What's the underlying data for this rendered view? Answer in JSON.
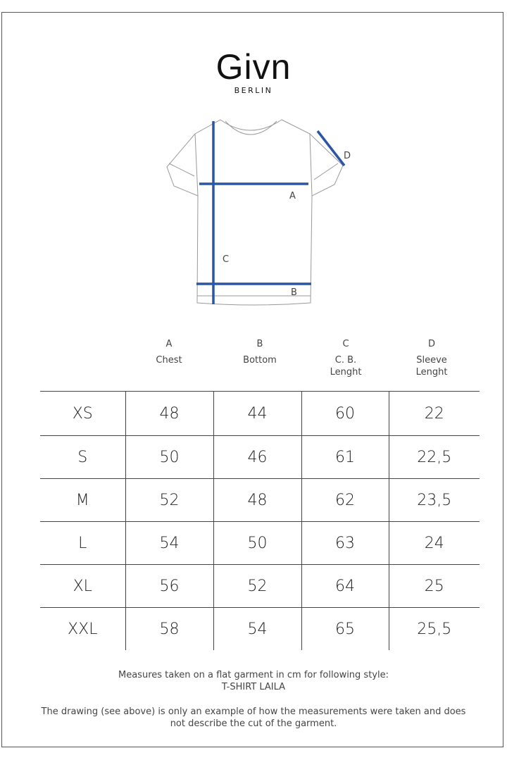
{
  "brand": {
    "name": "Givn",
    "city": "BERLIN"
  },
  "diagram": {
    "labels": [
      "A",
      "B",
      "C",
      "D"
    ],
    "line_color": "#2c55a8"
  },
  "columns": [
    {
      "letter": "A",
      "name": "Chest"
    },
    {
      "letter": "B",
      "name": "Bottom"
    },
    {
      "letter": "C",
      "name": "C. B. Lenght"
    },
    {
      "letter": "D",
      "name": "Sleeve Lenght"
    }
  ],
  "rows": [
    [
      "XS",
      "48",
      "44",
      "60",
      "22"
    ],
    [
      "S",
      "50",
      "46",
      "61",
      "22,5"
    ],
    [
      "M",
      "52",
      "48",
      "62",
      "23,5"
    ],
    [
      "L",
      "54",
      "50",
      "63",
      "24"
    ],
    [
      "XL",
      "56",
      "52",
      "64",
      "25"
    ],
    [
      "XXL",
      "58",
      "54",
      "65",
      "25,5"
    ]
  ],
  "notes": {
    "line1": "Measures taken on a flat garment in cm for following style:",
    "line2": "T-SHIRT LAILA",
    "line3": "The drawing (see above) is only an example of how the measurements were taken and does",
    "line4": "not describe the cut of the garment."
  }
}
